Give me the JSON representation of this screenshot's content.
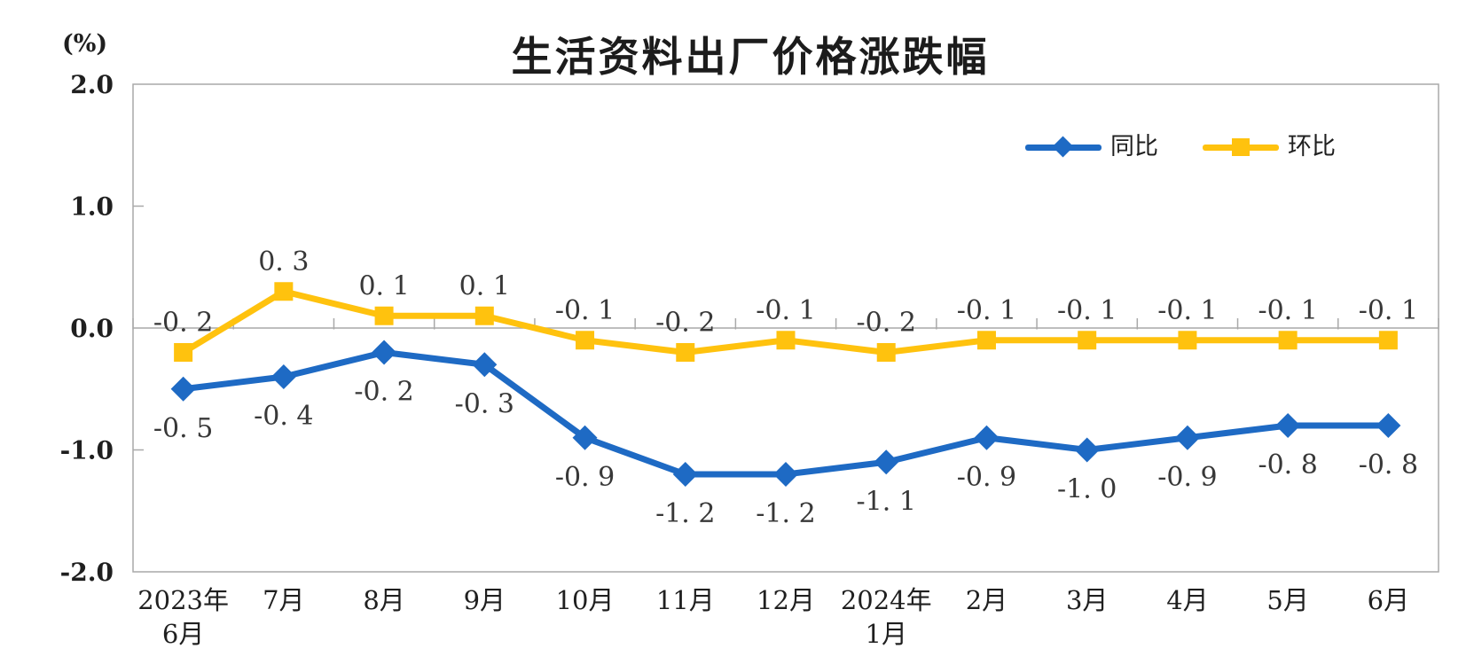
{
  "title": "生活资料出厂价格涨跌幅",
  "y_axis_unit": "(%)",
  "legend": {
    "items": [
      {
        "label": "同比",
        "marker": "diamond"
      },
      {
        "label": "环比",
        "marker": "square"
      }
    ]
  },
  "chart_data": {
    "type": "line",
    "title": "生活资料出厂价格涨跌幅",
    "unit": "(%)",
    "categories": [
      "2023年6月",
      "7月",
      "8月",
      "9月",
      "10月",
      "11月",
      "12月",
      "2024年1月",
      "2月",
      "3月",
      "4月",
      "5月",
      "6月"
    ],
    "category_lines": [
      [
        "2023年",
        "6月"
      ],
      [
        "7月"
      ],
      [
        "8月"
      ],
      [
        "9月"
      ],
      [
        "10月"
      ],
      [
        "11月"
      ],
      [
        "12月"
      ],
      [
        "2024年",
        "1月"
      ],
      [
        "2月"
      ],
      [
        "3月"
      ],
      [
        "4月"
      ],
      [
        "5月"
      ],
      [
        "6月"
      ]
    ],
    "series": [
      {
        "name": "同比",
        "color": "#1E6AC4",
        "marker": "diamond",
        "label_position": "below",
        "values": [
          -0.5,
          -0.4,
          -0.2,
          -0.3,
          -0.9,
          -1.2,
          -1.2,
          -1.1,
          -0.9,
          -1.0,
          -0.9,
          -0.8,
          -0.8
        ],
        "labels": [
          "-0. 5",
          "-0. 4",
          "-0. 2",
          "-0. 3",
          "-0. 9",
          "-1. 2",
          "-1. 2",
          "-1. 1",
          "-0. 9",
          "-1. 0",
          "-0. 9",
          "-0. 8",
          "-0. 8"
        ]
      },
      {
        "name": "环比",
        "color": "#FFC20E",
        "marker": "square",
        "label_position": "above",
        "values": [
          -0.2,
          0.3,
          0.1,
          0.1,
          -0.1,
          -0.2,
          -0.1,
          -0.2,
          -0.1,
          -0.1,
          -0.1,
          -0.1,
          -0.1
        ],
        "labels": [
          "-0. 2",
          "0. 3",
          "0. 1",
          "0. 1",
          "-0. 1",
          "-0. 2",
          "-0. 1",
          "-0. 2",
          "-0. 1",
          "-0. 1",
          "-0. 1",
          "-0. 1",
          "-0. 1"
        ]
      }
    ],
    "ylim": [
      -2.0,
      2.0
    ],
    "yticks": [
      {
        "value": 2.0,
        "label": "2.0"
      },
      {
        "value": 1.0,
        "label": "1.0"
      },
      {
        "value": 0.0,
        "label": "0.0"
      },
      {
        "value": -1.0,
        "label": "-1.0"
      },
      {
        "value": -2.0,
        "label": "-2.0"
      }
    ],
    "grid": false,
    "legend_position": "top-right-inside",
    "colors": {
      "axis": "#A9A9A9",
      "data_label": "#383838",
      "tick_label": "#1F1F1F"
    }
  }
}
